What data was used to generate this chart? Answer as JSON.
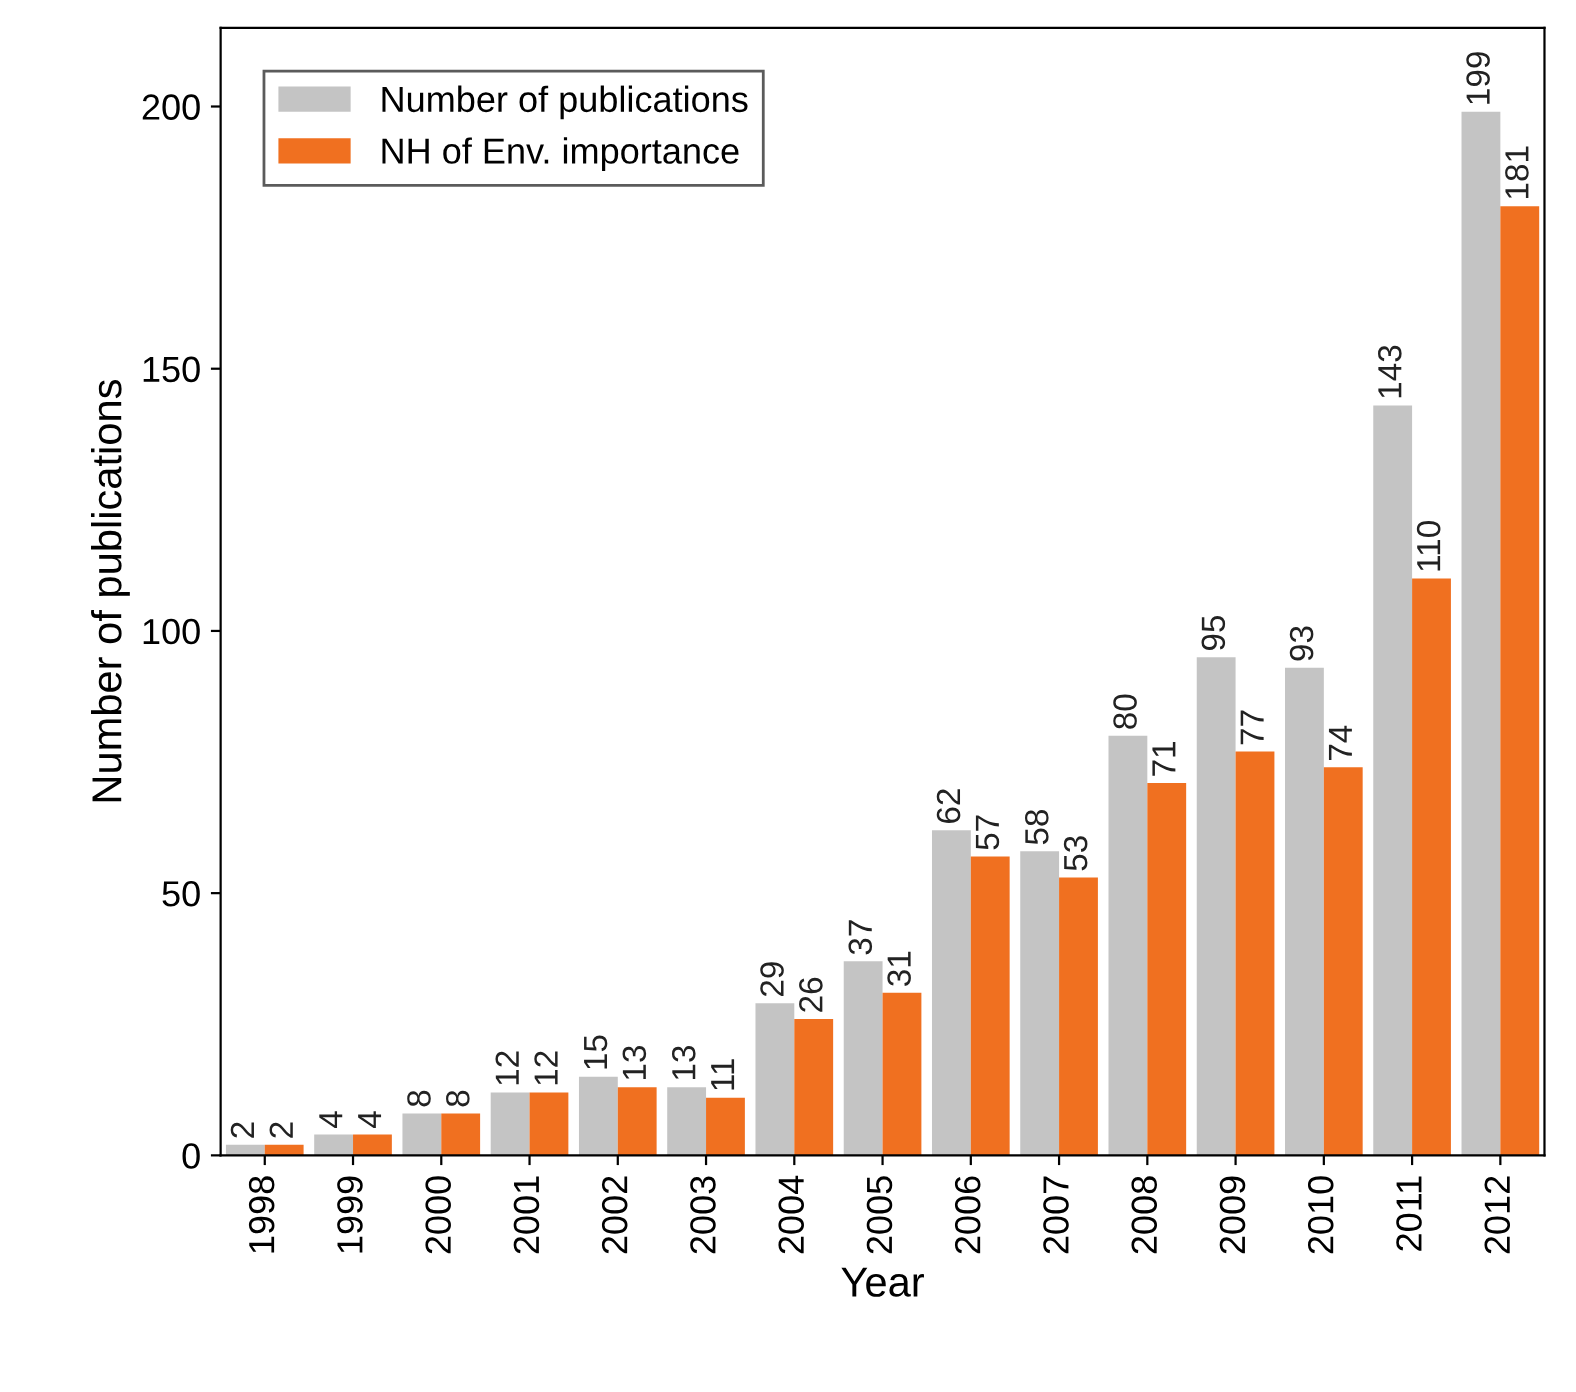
{
  "chart_data": {
    "type": "bar",
    "xlabel": "Year",
    "ylabel": "Number of publications",
    "categories": [
      "1998",
      "1999",
      "2000",
      "2001",
      "2002",
      "2003",
      "2004",
      "2005",
      "2006",
      "2007",
      "2008",
      "2009",
      "2010",
      "2011",
      "2012"
    ],
    "series": [
      {
        "name": "Number of publications",
        "color": "#c4c4c4",
        "values": [
          2,
          4,
          8,
          12,
          15,
          13,
          29,
          37,
          62,
          58,
          80,
          95,
          93,
          143,
          199
        ]
      },
      {
        "name": "NH of Env. importance",
        "color": "#f07020",
        "values": [
          2,
          4,
          8,
          12,
          13,
          11,
          26,
          31,
          57,
          53,
          71,
          77,
          74,
          110,
          181
        ]
      }
    ],
    "ylim": [
      0,
      215
    ],
    "yticks": [
      0,
      50,
      100,
      150,
      200
    ],
    "data_labels": true,
    "grid": false,
    "legend": "top left"
  }
}
